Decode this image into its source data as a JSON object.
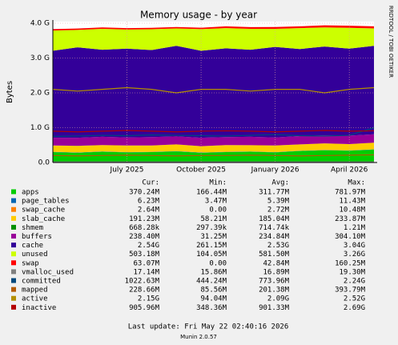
{
  "chart_data": {
    "type": "area",
    "title": "Memory usage - by year",
    "y_label": "Bytes",
    "side_label": "RRDTOOL / TOBI OETIKER",
    "x": [
      "2025-04",
      "2025-05",
      "2025-06",
      "2025-07",
      "2025-08",
      "2025-09",
      "2025-10",
      "2025-11",
      "2025-12",
      "2026-01",
      "2026-02",
      "2026-03",
      "2026-04",
      "2026-05"
    ],
    "xlim": [
      "2025-04",
      "2026-05"
    ],
    "xticks": [
      {
        "value": "2025-07",
        "label": "July 2025"
      },
      {
        "value": "2025-10",
        "label": "October 2025"
      },
      {
        "value": "2026-01",
        "label": "January 2026"
      },
      {
        "value": "2026-04",
        "label": "April 2026"
      }
    ],
    "ylim": [
      0,
      4
    ],
    "yticks": [
      {
        "value": 0,
        "label": "0.0"
      },
      {
        "value": 1,
        "label": "1.0 G"
      },
      {
        "value": 2,
        "label": "2.0 G"
      },
      {
        "value": 3,
        "label": "3.0 G"
      },
      {
        "value": 4,
        "label": "4.0 G"
      }
    ],
    "grid": true,
    "legend_columns": [
      "Cur:",
      "Min:",
      "Avg:",
      "Max:"
    ],
    "series": [
      {
        "name": "apps",
        "kind": "area",
        "color": "#00CC00",
        "values": [
          0.3,
          0.28,
          0.31,
          0.29,
          0.3,
          0.32,
          0.28,
          0.3,
          0.31,
          0.29,
          0.33,
          0.35,
          0.34,
          0.37
        ],
        "cur": "370.24M",
        "min": "166.44M",
        "avg": "311.77M",
        "max": "781.97M"
      },
      {
        "name": "page_tables",
        "kind": "area",
        "color": "#0066B3",
        "values": [
          0.006,
          0.006,
          0.006,
          0.005,
          0.006,
          0.006,
          0.006,
          0.006,
          0.005,
          0.006,
          0.006,
          0.006,
          0.006,
          0.006
        ],
        "cur": "6.23M",
        "min": "3.47M",
        "avg": "5.39M",
        "max": "11.43M"
      },
      {
        "name": "swap_cache",
        "kind": "area",
        "color": "#FF8000",
        "values": [
          0.003,
          0.002,
          0.003,
          0.003,
          0.002,
          0.003,
          0.003,
          0.003,
          0.002,
          0.003,
          0.003,
          0.003,
          0.002,
          0.003
        ],
        "cur": "2.64M",
        "min": "0.00",
        "avg": "2.72M",
        "max": "10.48M"
      },
      {
        "name": "slab_cache",
        "kind": "area",
        "color": "#FFCC00",
        "values": [
          0.18,
          0.19,
          0.18,
          0.19,
          0.18,
          0.19,
          0.18,
          0.19,
          0.18,
          0.19,
          0.18,
          0.19,
          0.18,
          0.19
        ],
        "cur": "191.23M",
        "min": "58.21M",
        "avg": "185.04M",
        "max": "233.87M"
      },
      {
        "name": "shmem",
        "kind": "area",
        "color": "#008F00",
        "values": [
          0.0007,
          0.0007,
          0.0007,
          0.0007,
          0.0007,
          0.0007,
          0.0007,
          0.0007,
          0.0007,
          0.0007,
          0.0007,
          0.0007,
          0.0007,
          0.0007
        ],
        "cur": "668.28k",
        "min": "297.39k",
        "avg": "714.74k",
        "max": "1.21M"
      },
      {
        "name": "buffers",
        "kind": "area",
        "color": "#990099",
        "values": [
          0.22,
          0.23,
          0.24,
          0.23,
          0.24,
          0.23,
          0.24,
          0.23,
          0.24,
          0.23,
          0.24,
          0.23,
          0.24,
          0.24
        ],
        "cur": "238.40M",
        "min": "31.25M",
        "avg": "234.84M",
        "max": "304.10M"
      },
      {
        "name": "cache",
        "kind": "area",
        "color": "#330099",
        "values": [
          2.5,
          2.6,
          2.5,
          2.55,
          2.5,
          2.6,
          2.5,
          2.55,
          2.5,
          2.6,
          2.5,
          2.55,
          2.5,
          2.54
        ],
        "cur": "2.54G",
        "min": "261.15M",
        "avg": "2.53G",
        "max": "3.04G"
      },
      {
        "name": "unused",
        "kind": "area",
        "color": "#CCFF00",
        "values": [
          0.58,
          0.5,
          0.6,
          0.55,
          0.6,
          0.5,
          0.62,
          0.58,
          0.6,
          0.52,
          0.6,
          0.55,
          0.6,
          0.5
        ],
        "cur": "503.18M",
        "min": "104.05M",
        "avg": "581.50M",
        "max": "3.26G"
      },
      {
        "name": "swap",
        "kind": "area",
        "color": "#FF0000",
        "values": [
          0.04,
          0.04,
          0.04,
          0.04,
          0.04,
          0.04,
          0.04,
          0.05,
          0.05,
          0.05,
          0.05,
          0.06,
          0.06,
          0.06
        ],
        "cur": "63.07M",
        "min": "0.00",
        "avg": "42.84M",
        "max": "160.25M"
      },
      {
        "name": "vmalloc_used",
        "kind": "line",
        "color": "#808080",
        "values": [
          0.017,
          0.017,
          0.017,
          0.017,
          0.017,
          0.017,
          0.017,
          0.017,
          0.017,
          0.017,
          0.017,
          0.017,
          0.017,
          0.017
        ],
        "cur": "17.14M",
        "min": "15.86M",
        "avg": "16.89M",
        "max": "19.30M"
      },
      {
        "name": "committed",
        "kind": "line",
        "color": "#00487D",
        "values": [
          0.75,
          0.76,
          0.78,
          0.77,
          0.79,
          0.78,
          0.77,
          0.76,
          0.78,
          0.8,
          0.77,
          0.76,
          0.78,
          1.0
        ],
        "cur": "1022.63M",
        "min": "444.24M",
        "avg": "773.96M",
        "max": "2.24G"
      },
      {
        "name": "mapped",
        "kind": "line",
        "color": "#B35A00",
        "values": [
          0.2,
          0.19,
          0.2,
          0.21,
          0.2,
          0.19,
          0.2,
          0.2,
          0.21,
          0.2,
          0.19,
          0.2,
          0.21,
          0.22
        ],
        "cur": "228.66M",
        "min": "85.56M",
        "avg": "201.38M",
        "max": "393.79M"
      },
      {
        "name": "active",
        "kind": "line",
        "color": "#B38F00",
        "values": [
          2.1,
          2.05,
          2.1,
          2.15,
          2.1,
          2.0,
          2.1,
          2.1,
          2.05,
          2.1,
          2.1,
          2.0,
          2.1,
          2.15
        ],
        "cur": "2.15G",
        "min": "94.04M",
        "avg": "2.09G",
        "max": "2.52G"
      },
      {
        "name": "inactive",
        "kind": "line",
        "color": "#B30000",
        "values": [
          0.9,
          0.88,
          0.9,
          0.92,
          0.9,
          0.88,
          0.9,
          0.91,
          0.9,
          0.88,
          0.9,
          0.92,
          0.9,
          0.91
        ],
        "cur": "905.96M",
        "min": "348.36M",
        "avg": "901.33M",
        "max": "2.69G"
      }
    ],
    "last_update": "Last update: Fri May 22 02:40:16 2026",
    "version": "Munin 2.0.57"
  }
}
